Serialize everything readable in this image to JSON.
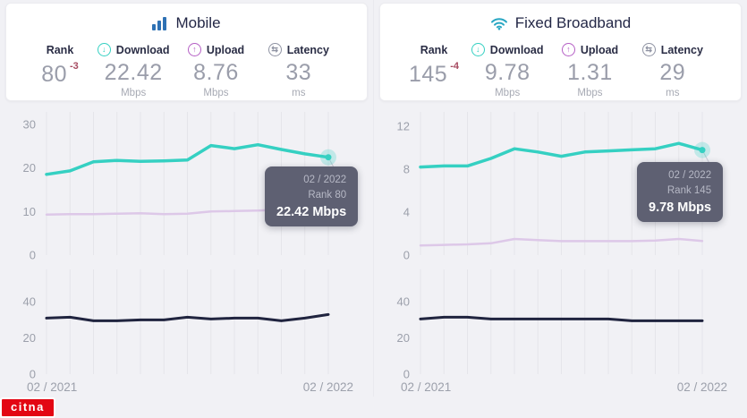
{
  "colors": {
    "download": "#35d0c2",
    "upload": "#ddc8e8",
    "latency": "#20243f",
    "grid": "#e5e5ea",
    "tick": "#9ca0ab",
    "mobile_icon_blue": "#2e71b4",
    "wifi_icon_teal": "#29a7c3",
    "rank_delta_red": "#a64a60",
    "tooltip_bg": "#5e6072",
    "watermark_red": "#e30613"
  },
  "panels": [
    {
      "title": "Mobile",
      "icon": "signal-bars-icon",
      "stats": {
        "rank": {
          "label": "Rank",
          "value": "80",
          "delta": "-3"
        },
        "download": {
          "label": "Download",
          "value": "22.42",
          "unit": "Mbps"
        },
        "upload": {
          "label": "Upload",
          "value": "8.76",
          "unit": "Mbps"
        },
        "latency": {
          "label": "Latency",
          "value": "33",
          "unit": "ms"
        }
      },
      "tooltip": {
        "date": "02 / 2022",
        "rank": "Rank 80",
        "value": "22.42 Mbps"
      }
    },
    {
      "title": "Fixed Broadband",
      "icon": "wifi-icon",
      "stats": {
        "rank": {
          "label": "Rank",
          "value": "145",
          "delta": "-4"
        },
        "download": {
          "label": "Download",
          "value": "9.78",
          "unit": "Mbps"
        },
        "upload": {
          "label": "Upload",
          "value": "1.31",
          "unit": "Mbps"
        },
        "latency": {
          "label": "Latency",
          "value": "29",
          "unit": "ms"
        }
      },
      "tooltip": {
        "date": "02 / 2022",
        "rank": "Rank 145",
        "value": "9.78 Mbps"
      }
    }
  ],
  "watermark": "citna",
  "chart_data": [
    {
      "type": "line",
      "title": "Mobile download / upload speed over time (Mbps)",
      "n_points": 13,
      "x_labels": [
        "02 / 2021",
        "02 / 2022"
      ],
      "ylim": [
        0,
        32
      ],
      "yticks": [
        0,
        10,
        20,
        30
      ],
      "grid": "vertical-only",
      "legend": "none",
      "series": [
        {
          "name": "Download (Mbps)",
          "color_key": "download",
          "marker_last": true,
          "values": [
            18.5,
            19.3,
            21.4,
            21.7,
            21.5,
            21.6,
            21.8,
            25.1,
            24.4,
            25.3,
            24.2,
            23.2,
            22.42
          ]
        },
        {
          "name": "Upload (Mbps)",
          "color_key": "upload",
          "values": [
            9.3,
            9.4,
            9.4,
            9.5,
            9.6,
            9.4,
            9.5,
            10.0,
            10.1,
            10.2,
            10.4,
            9.6,
            8.76
          ]
        }
      ]
    },
    {
      "type": "line",
      "title": "Mobile latency over time (ms)",
      "n_points": 13,
      "x_labels": [
        "02 / 2021",
        "02 / 2022"
      ],
      "show_x_labels": true,
      "ylim": [
        0,
        52
      ],
      "yticks": [
        0,
        20,
        40
      ],
      "grid": "vertical-only",
      "legend": "none",
      "series": [
        {
          "name": "Latency (ms)",
          "color_key": "latency",
          "values": [
            31,
            31.5,
            29.5,
            29.5,
            30,
            30,
            31.5,
            30.5,
            31,
            31,
            29.5,
            31,
            33
          ]
        }
      ]
    },
    {
      "type": "line",
      "title": "Fixed broadband download / upload speed over time (Mbps)",
      "n_points": 13,
      "x_labels": [
        "02 / 2021",
        "02 / 2022"
      ],
      "ylim": [
        0,
        13
      ],
      "yticks": [
        0,
        4,
        8,
        12
      ],
      "grid": "vertical-only",
      "legend": "none",
      "series": [
        {
          "name": "Download (Mbps)",
          "color_key": "download",
          "marker_last": true,
          "values": [
            8.2,
            8.3,
            8.3,
            9.0,
            9.9,
            9.6,
            9.2,
            9.6,
            9.7,
            9.8,
            9.9,
            10.4,
            9.78
          ]
        },
        {
          "name": "Upload (Mbps)",
          "color_key": "upload",
          "values": [
            0.9,
            0.95,
            1.0,
            1.1,
            1.5,
            1.4,
            1.3,
            1.3,
            1.3,
            1.3,
            1.35,
            1.5,
            1.31
          ]
        }
      ]
    },
    {
      "type": "line",
      "title": "Fixed broadband latency over time (ms)",
      "n_points": 13,
      "x_labels": [
        "02 / 2021",
        "02 / 2022"
      ],
      "show_x_labels": true,
      "ylim": [
        0,
        52
      ],
      "yticks": [
        0,
        20,
        40
      ],
      "grid": "vertical-only",
      "legend": "none",
      "series": [
        {
          "name": "Latency (ms)",
          "color_key": "latency",
          "values": [
            30.5,
            31.5,
            31.5,
            30.5,
            30.5,
            30.5,
            30.5,
            30.5,
            30.5,
            29.5,
            29.5,
            29.5,
            29.5
          ]
        }
      ]
    }
  ]
}
